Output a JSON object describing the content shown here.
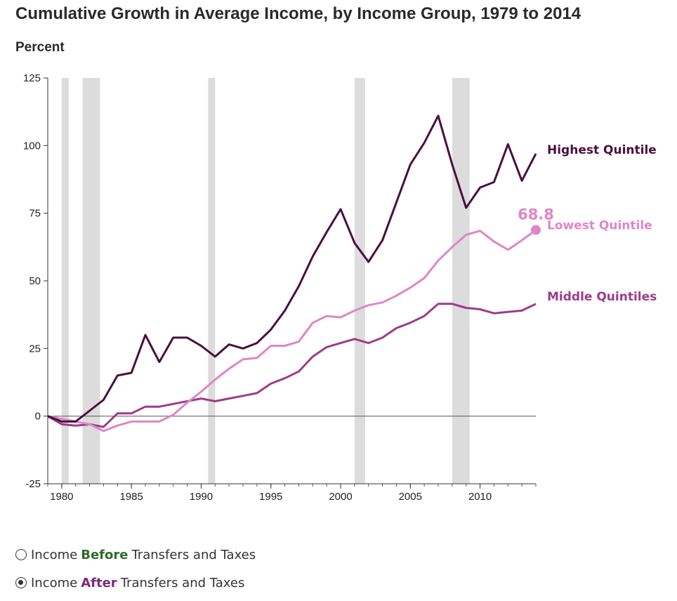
{
  "header": {
    "title": "Cumulative Growth in Average Income, by Income Group, 1979 to 2014",
    "subtitle": "Percent"
  },
  "controls": {
    "options": [
      {
        "prefix": "Income",
        "keyword": "Before",
        "suffix": "Transfers and Taxes",
        "selected": false
      },
      {
        "prefix": "Income",
        "keyword": "After",
        "suffix": "Transfers and Taxes",
        "selected": true
      }
    ]
  },
  "chart_data": {
    "type": "line",
    "title": "Cumulative Growth in Average Income, by Income Group, 1979 to 2014",
    "ylabel": "Percent",
    "xlim": [
      1979,
      2014
    ],
    "ylim": [
      -25,
      125
    ],
    "yticks": [
      -25,
      0,
      25,
      50,
      75,
      100,
      125
    ],
    "xticks": [
      1980,
      1985,
      1990,
      1995,
      2000,
      2005,
      2010
    ],
    "recessions": [
      [
        1980.0,
        1980.5
      ],
      [
        1981.5,
        1982.75
      ],
      [
        1990.5,
        1991.0
      ],
      [
        2001.0,
        2001.75
      ],
      [
        2008.0,
        2009.25
      ]
    ],
    "x": [
      1979,
      1980,
      1981,
      1982,
      1983,
      1984,
      1985,
      1986,
      1987,
      1988,
      1989,
      1990,
      1991,
      1992,
      1993,
      1994,
      1995,
      1996,
      1997,
      1998,
      1999,
      2000,
      2001,
      2002,
      2003,
      2004,
      2005,
      2006,
      2007,
      2008,
      2009,
      2010,
      2011,
      2012,
      2013,
      2014
    ],
    "series": [
      {
        "name": "Highest Quintile",
        "color": "#4a0f40",
        "values": [
          0,
          -2,
          -2,
          2,
          6,
          15,
          16,
          30,
          20,
          29,
          29,
          26,
          22,
          26.5,
          25,
          27,
          32,
          39,
          48,
          59,
          68,
          76.5,
          64,
          57,
          65,
          79,
          93,
          101,
          111,
          93,
          77,
          84.5,
          86.5,
          100.5,
          87,
          97
        ]
      },
      {
        "name": "Lowest Quintile",
        "color": "#e086c6",
        "end_label": "68.8",
        "values": [
          0,
          -1,
          -2,
          -3,
          -5.5,
          -3.5,
          -2,
          -2,
          -2,
          0.5,
          5,
          9,
          13.5,
          17.5,
          21,
          21.5,
          26,
          26,
          27.5,
          34.5,
          37,
          36.5,
          39,
          41,
          42,
          44.5,
          47.5,
          51,
          57.5,
          62.5,
          67,
          68.5,
          64.5,
          61.5,
          65,
          68.8
        ]
      },
      {
        "name": "Middle Quintiles",
        "color": "#9b3d8a",
        "values": [
          0,
          -3,
          -3.5,
          -3,
          -4,
          1,
          1,
          3.5,
          3.5,
          4.5,
          5.5,
          6.5,
          5.5,
          6.5,
          7.5,
          8.5,
          12,
          14,
          16.5,
          22,
          25.5,
          27,
          28.5,
          27,
          29,
          32.5,
          34.5,
          37,
          41.5,
          41.5,
          40,
          39.5,
          38,
          38.5,
          39,
          41.5
        ]
      }
    ]
  }
}
